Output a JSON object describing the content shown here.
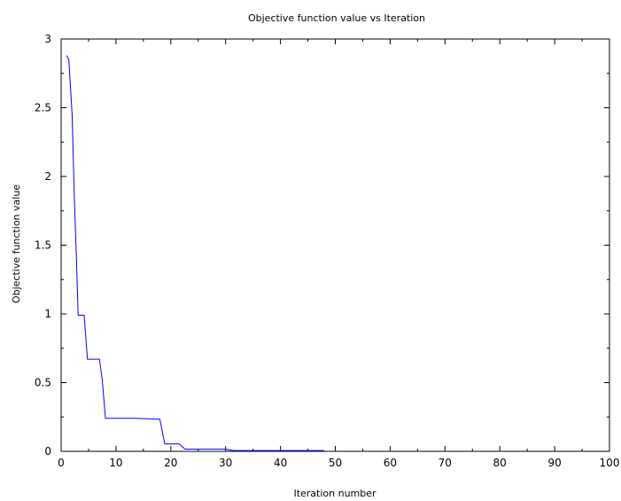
{
  "chart_data": {
    "type": "line",
    "title": "Objective function value vs Iteration",
    "xlabel": "Iteration number",
    "ylabel": "Objective function value",
    "xlim": [
      0,
      100
    ],
    "ylim": [
      0,
      3
    ],
    "x_ticks": [
      0,
      10,
      20,
      30,
      40,
      50,
      60,
      70,
      80,
      90,
      100
    ],
    "x_tick_labels": [
      "0",
      "10",
      "20",
      "30",
      "40",
      "50",
      "60",
      "70",
      "80",
      "90",
      "100"
    ],
    "y_ticks": [
      0,
      0.5,
      1,
      1.5,
      2,
      2.5,
      3
    ],
    "y_tick_labels": [
      "0",
      "0.5",
      "1",
      "1.5",
      "2",
      "2.5",
      "3"
    ],
    "grid": false,
    "legend": "none",
    "series": [
      {
        "color": "#0000ff",
        "x": [
          1,
          1.4,
          2,
          2.4,
          2.8,
          3.1,
          4.2,
          4.8,
          7.0,
          7.5,
          8.1,
          13.3,
          18.0,
          18.9,
          21.5,
          22.6,
          30.0,
          31.4,
          48.0
        ],
        "y": [
          2.88,
          2.85,
          2.45,
          1.85,
          1.4,
          0.99,
          0.99,
          0.67,
          0.67,
          0.52,
          0.24,
          0.24,
          0.234,
          0.054,
          0.054,
          0.016,
          0.016,
          0.006,
          0.006
        ]
      }
    ]
  }
}
